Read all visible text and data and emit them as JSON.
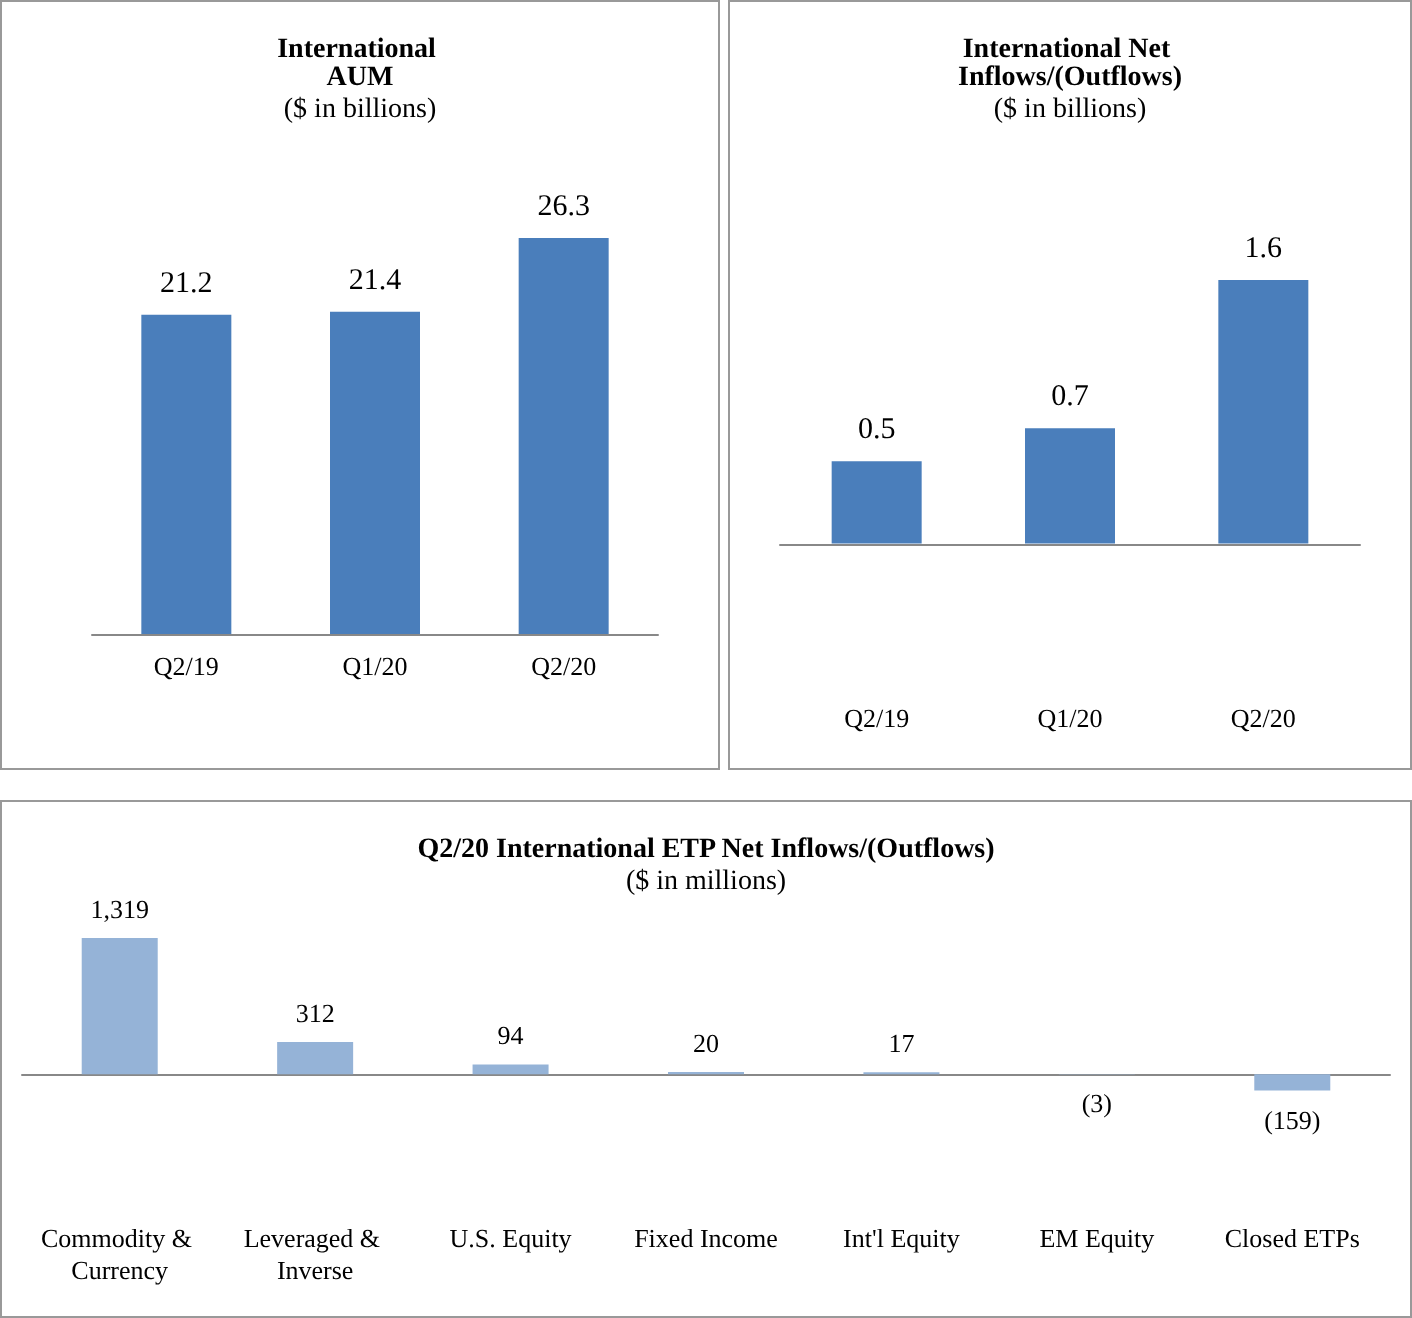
{
  "chart_data": [
    {
      "type": "bar",
      "title": "International AUM",
      "subtitle": "($ in billions)",
      "categories": [
        "Q2/19",
        "Q1/20",
        "Q2/20"
      ],
      "values": [
        21.2,
        21.4,
        26.3
      ],
      "color": "#4a7ebb",
      "data_labels": true
    },
    {
      "type": "bar",
      "title": "International Net Inflows/(Outflows)",
      "subtitle": "($ in billions)",
      "categories": [
        "Q2/19",
        "Q1/20",
        "Q2/20"
      ],
      "values": [
        0.5,
        0.7,
        1.6
      ],
      "color": "#4a7ebb",
      "data_labels": true
    },
    {
      "type": "bar",
      "title": "Q2/20 International ETP Net Inflows/(Outflows)",
      "subtitle": "($ in millions)",
      "categories": [
        "Commodity & Currency",
        "Leveraged & Inverse",
        "U.S. Equity",
        "Fixed Income",
        "Int'l Equity",
        "EM Equity",
        "Closed ETPs"
      ],
      "values": [
        1319,
        312,
        94,
        20,
        17,
        -3,
        -159
      ],
      "value_labels": [
        "1,319",
        "312",
        "94",
        "20",
        "17",
        "(3)",
        "(159)"
      ],
      "color": "#95b3d7"
    }
  ]
}
